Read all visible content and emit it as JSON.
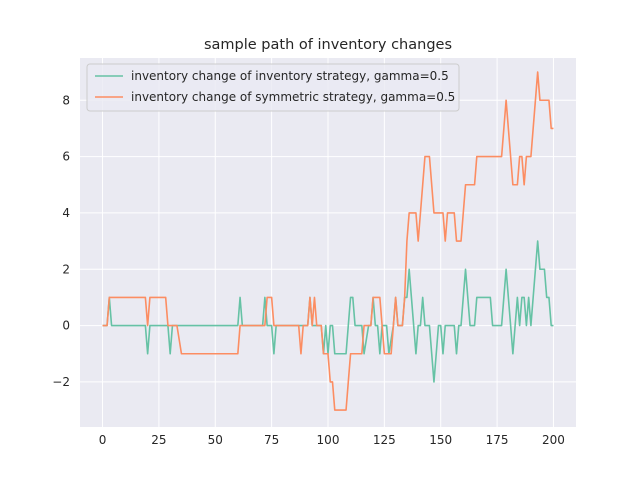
{
  "chart_data": {
    "type": "line",
    "title": "sample path of inventory changes",
    "xlabel": "",
    "ylabel": "",
    "xlim": [
      -10,
      210
    ],
    "ylim": [
      -3.6,
      9.5
    ],
    "xticks": [
      0,
      25,
      50,
      75,
      100,
      125,
      150,
      175,
      200
    ],
    "yticks": [
      -2,
      0,
      2,
      4,
      6,
      8
    ],
    "ytick_labels": [
      "−2",
      "0",
      "2",
      "4",
      "6",
      "8"
    ],
    "grid": true,
    "legend_position": "upper-left",
    "series": [
      {
        "name": "inventory change of inventory strategy, gamma=0.5",
        "color": "#66c2a5",
        "points": [
          [
            0,
            0
          ],
          [
            2,
            0
          ],
          [
            3,
            1
          ],
          [
            4,
            0
          ],
          [
            19,
            0
          ],
          [
            20,
            -1
          ],
          [
            21,
            0
          ],
          [
            29,
            0
          ],
          [
            30,
            -1
          ],
          [
            31,
            0
          ],
          [
            60,
            0
          ],
          [
            61,
            1
          ],
          [
            62,
            0
          ],
          [
            71,
            0
          ],
          [
            72,
            1
          ],
          [
            73,
            0
          ],
          [
            75,
            0
          ],
          [
            76,
            -1
          ],
          [
            77,
            0
          ],
          [
            91,
            0
          ],
          [
            92,
            1
          ],
          [
            93,
            0
          ],
          [
            97,
            0
          ],
          [
            98,
            -1
          ],
          [
            99,
            0
          ],
          [
            100,
            -1
          ],
          [
            101,
            0
          ],
          [
            102,
            0
          ],
          [
            103,
            -1
          ],
          [
            108,
            -1
          ],
          [
            109,
            0
          ],
          [
            110,
            1
          ],
          [
            111,
            1
          ],
          [
            112,
            0
          ],
          [
            115,
            0
          ],
          [
            116,
            -1
          ],
          [
            118,
            0
          ],
          [
            119,
            0
          ],
          [
            120,
            1
          ],
          [
            121,
            0
          ],
          [
            122,
            0
          ],
          [
            123,
            -1
          ],
          [
            124,
            0
          ],
          [
            126,
            0
          ],
          [
            127,
            -1
          ],
          [
            129,
            0
          ],
          [
            130,
            1
          ],
          [
            131,
            0
          ],
          [
            133,
            0
          ],
          [
            134,
            1
          ],
          [
            135,
            1
          ],
          [
            136,
            2
          ],
          [
            137,
            1
          ],
          [
            138,
            0
          ],
          [
            139,
            -1
          ],
          [
            140,
            0
          ],
          [
            141,
            0
          ],
          [
            142,
            1
          ],
          [
            143,
            0
          ],
          [
            145,
            0
          ],
          [
            146,
            -1
          ],
          [
            147,
            -2
          ],
          [
            148,
            -1
          ],
          [
            149,
            0
          ],
          [
            150,
            0
          ],
          [
            151,
            -1
          ],
          [
            152,
            0
          ],
          [
            156,
            0
          ],
          [
            157,
            -1
          ],
          [
            158,
            0
          ],
          [
            159,
            0
          ],
          [
            160,
            1
          ],
          [
            161,
            2
          ],
          [
            162,
            1
          ],
          [
            163,
            0
          ],
          [
            165,
            0
          ],
          [
            166,
            1
          ],
          [
            172,
            1
          ],
          [
            173,
            0
          ],
          [
            177,
            0
          ],
          [
            178,
            1
          ],
          [
            179,
            2
          ],
          [
            180,
            1
          ],
          [
            181,
            0
          ],
          [
            182,
            -1
          ],
          [
            183,
            0
          ],
          [
            184,
            1
          ],
          [
            185,
            0
          ],
          [
            186,
            1
          ],
          [
            187,
            1
          ],
          [
            188,
            0
          ],
          [
            189,
            1
          ],
          [
            190,
            0
          ],
          [
            191,
            1
          ],
          [
            192,
            2
          ],
          [
            193,
            3
          ],
          [
            194,
            2
          ],
          [
            196,
            2
          ],
          [
            197,
            1
          ],
          [
            198,
            1
          ],
          [
            199,
            0
          ],
          [
            200,
            0
          ]
        ]
      },
      {
        "name": "inventory change of symmetric strategy, gamma=0.5",
        "color": "#fc8d62",
        "points": [
          [
            0,
            0
          ],
          [
            1,
            0
          ],
          [
            2,
            0
          ],
          [
            3,
            1
          ],
          [
            19,
            1
          ],
          [
            20,
            0
          ],
          [
            21,
            1
          ],
          [
            28,
            1
          ],
          [
            29,
            0
          ],
          [
            33,
            0
          ],
          [
            35,
            -1
          ],
          [
            60,
            -1
          ],
          [
            61,
            0
          ],
          [
            72,
            0
          ],
          [
            73,
            1
          ],
          [
            75,
            1
          ],
          [
            76,
            0
          ],
          [
            87,
            0
          ],
          [
            88,
            -1
          ],
          [
            89,
            0
          ],
          [
            91,
            0
          ],
          [
            92,
            1
          ],
          [
            93,
            0
          ],
          [
            94,
            1
          ],
          [
            95,
            0
          ],
          [
            97,
            0
          ],
          [
            98,
            -1
          ],
          [
            100,
            -1
          ],
          [
            101,
            -2
          ],
          [
            102,
            -2
          ],
          [
            103,
            -3
          ],
          [
            108,
            -3
          ],
          [
            109,
            -2
          ],
          [
            110,
            -1
          ],
          [
            115,
            -1
          ],
          [
            116,
            0
          ],
          [
            119,
            0
          ],
          [
            120,
            1
          ],
          [
            123,
            1
          ],
          [
            124,
            0
          ],
          [
            125,
            -1
          ],
          [
            128,
            -1
          ],
          [
            129,
            0
          ],
          [
            130,
            1
          ],
          [
            131,
            0
          ],
          [
            133,
            0
          ],
          [
            134,
            1
          ],
          [
            135,
            3
          ],
          [
            136,
            4
          ],
          [
            139,
            4
          ],
          [
            140,
            3
          ],
          [
            141,
            4
          ],
          [
            142,
            5
          ],
          [
            143,
            6
          ],
          [
            145,
            6
          ],
          [
            146,
            5
          ],
          [
            147,
            4
          ],
          [
            151,
            4
          ],
          [
            152,
            3
          ],
          [
            153,
            4
          ],
          [
            156,
            4
          ],
          [
            157,
            3
          ],
          [
            159,
            3
          ],
          [
            160,
            4
          ],
          [
            161,
            5
          ],
          [
            165,
            5
          ],
          [
            166,
            6
          ],
          [
            177,
            6
          ],
          [
            178,
            7
          ],
          [
            179,
            8
          ],
          [
            180,
            7
          ],
          [
            181,
            6
          ],
          [
            182,
            5
          ],
          [
            184,
            5
          ],
          [
            185,
            6
          ],
          [
            186,
            6
          ],
          [
            187,
            5
          ],
          [
            188,
            6
          ],
          [
            190,
            6
          ],
          [
            191,
            7
          ],
          [
            192,
            8
          ],
          [
            193,
            9
          ],
          [
            194,
            8
          ],
          [
            198,
            8
          ],
          [
            199,
            7
          ],
          [
            200,
            7
          ]
        ]
      }
    ]
  }
}
